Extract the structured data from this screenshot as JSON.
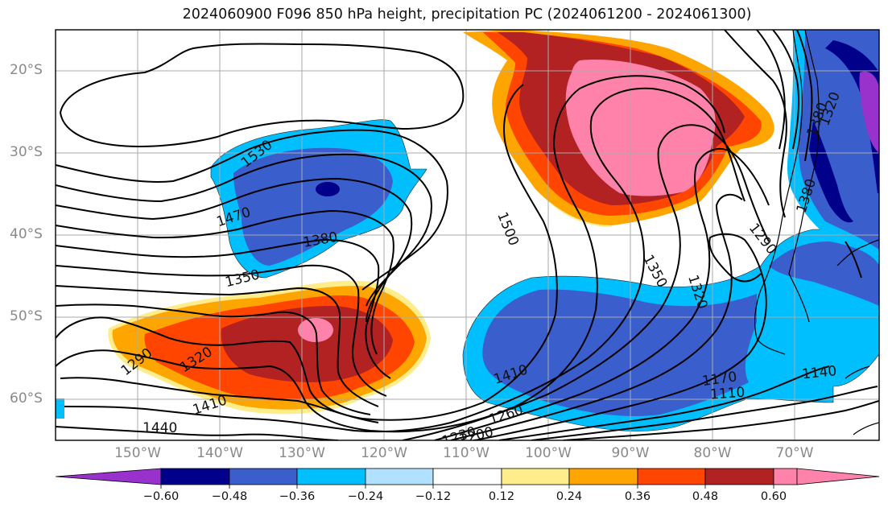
{
  "title": "2024060900 F096 850 hPa height, precipitation PC (2024061200 - 2024061300)",
  "latitude_labels": [
    "20°S",
    "30°S",
    "40°S",
    "50°S",
    "60°S"
  ],
  "longitude_labels": [
    "150°W",
    "140°W",
    "130°W",
    "120°W",
    "110°W",
    "100°W",
    "90°W",
    "80°W",
    "70°W"
  ],
  "colorbar": {
    "ticks": [
      "−0.60",
      "−0.48",
      "−0.36",
      "−0.24",
      "−0.12",
      "0.12",
      "0.24",
      "0.36",
      "0.48",
      "0.60"
    ],
    "colors": [
      "#9932cc",
      "#00008b",
      "#3a5fcd",
      "#00bfff",
      "#b0e2ff",
      "#ffffff",
      "#ffec8b",
      "#ffa500",
      "#ff4500",
      "#b22222",
      "#ff82ab"
    ]
  },
  "contour_labels": [
    "1530",
    "1470",
    "1380",
    "1350",
    "1290",
    "1320",
    "1410",
    "1440",
    "1500",
    "1350",
    "1320",
    "1290",
    "1380",
    "1380",
    "1410",
    "1260",
    "1230",
    "1200",
    "1170",
    "1110",
    "1140",
    "1320"
  ]
}
